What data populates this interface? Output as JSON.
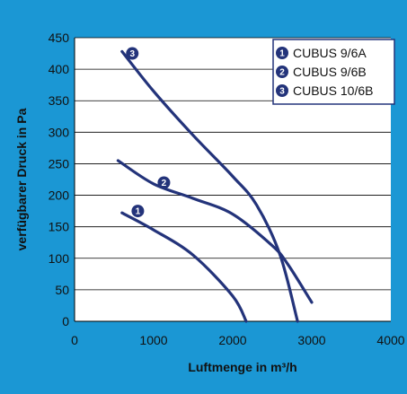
{
  "chart_data": {
    "type": "line",
    "xlabel": "Luftmenge in m³/h",
    "ylabel": "verfügbarer Druck in Pa",
    "xlim": [
      0,
      4000
    ],
    "ylim": [
      0,
      450
    ],
    "x_ticks": [
      "0",
      "1000",
      "2000",
      "3000",
      "4000"
    ],
    "y_ticks": [
      "0",
      "50",
      "100",
      "150",
      "200",
      "250",
      "300",
      "350",
      "400",
      "450"
    ],
    "grid": "horizontal",
    "legend_position": "top-right",
    "line_color": "#23337a",
    "frame_color": "#1b97d4",
    "series": [
      {
        "name": "CUBUS 9/6A",
        "marker": "1",
        "points": [
          [
            600,
            172
          ],
          [
            1000,
            145
          ],
          [
            1500,
            105
          ],
          [
            2000,
            40
          ],
          [
            2170,
            0
          ]
        ]
      },
      {
        "name": "CUBUS 9/6B",
        "marker": "2",
        "points": [
          [
            550,
            255
          ],
          [
            1000,
            218
          ],
          [
            1500,
            195
          ],
          [
            2000,
            170
          ],
          [
            2500,
            120
          ],
          [
            2700,
            90
          ],
          [
            3000,
            30
          ]
        ]
      },
      {
        "name": "CUBUS 10/6B",
        "marker": "3",
        "points": [
          [
            600,
            428
          ],
          [
            1000,
            365
          ],
          [
            1500,
            295
          ],
          [
            2000,
            230
          ],
          [
            2300,
            185
          ],
          [
            2600,
            105
          ],
          [
            2820,
            0
          ]
        ]
      }
    ]
  }
}
